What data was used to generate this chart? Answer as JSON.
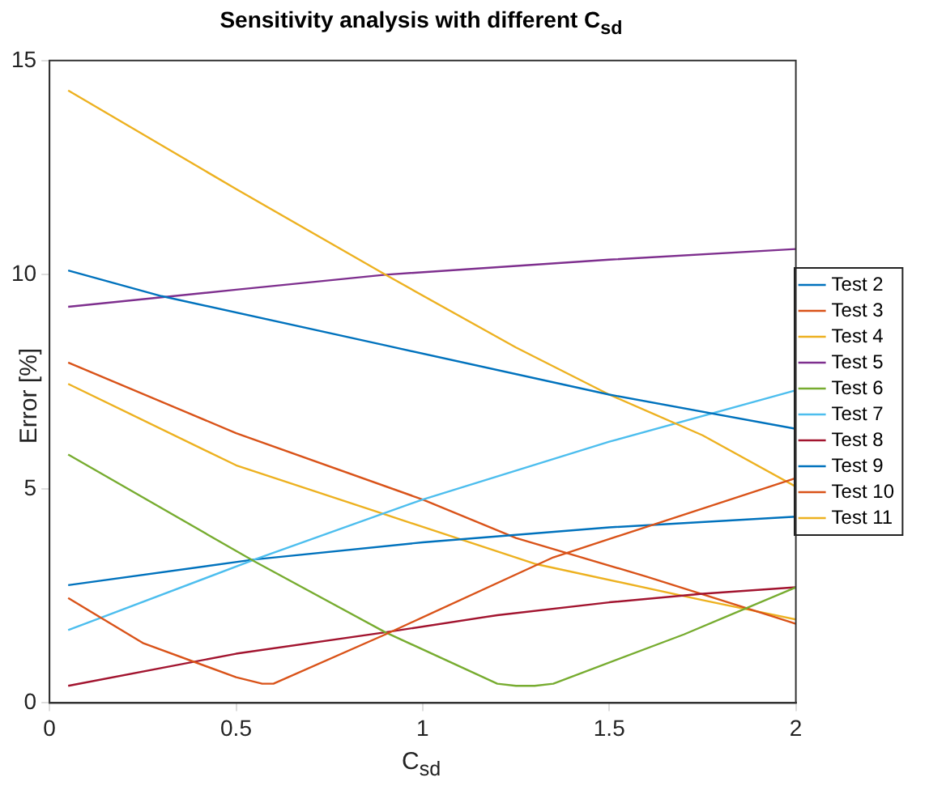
{
  "chart_data": {
    "type": "line",
    "title": "Sensitivity analysis with different C$_{sd}$",
    "xlabel": "C$_{sd}$",
    "ylabel": "Error [%]",
    "xlim": [
      0,
      2
    ],
    "xticks": [
      0,
      0.5,
      1,
      1.5,
      2
    ],
    "ylim": [
      0,
      15
    ],
    "yticks": [
      0,
      5,
      10,
      15
    ],
    "grid": false,
    "legend": "right",
    "marker": "none",
    "line_style": "solid",
    "series": [
      {
        "name": "Test 2",
        "color": "#0072bd",
        "x": [
          0.05,
          0.3,
          0.9,
          1.5,
          2
        ],
        "values": [
          10.1,
          9.5,
          8.35,
          7.2,
          6.4
        ]
      },
      {
        "name": "Test 3",
        "color": "#d95319",
        "x": [
          0.05,
          0.25,
          0.5,
          0.57,
          0.6,
          0.9,
          1.35,
          2
        ],
        "values": [
          2.45,
          1.4,
          0.6,
          0.45,
          0.45,
          1.6,
          3.4,
          5.25
        ]
      },
      {
        "name": "Test 4",
        "color": "#edb120",
        "x": [
          0.05,
          0.5,
          0.9,
          1.25,
          1.5,
          1.75,
          2
        ],
        "values": [
          14.3,
          12,
          10,
          8.3,
          7.2,
          6.25,
          5.05
        ]
      },
      {
        "name": "Test 5",
        "color": "#7e2f8e",
        "x": [
          0.05,
          0.5,
          0.9,
          1.5,
          2
        ],
        "values": [
          9.25,
          9.65,
          10,
          10.35,
          10.6
        ]
      },
      {
        "name": "Test 6",
        "color": "#77ac30",
        "x": [
          0.05,
          0.55,
          0.9,
          1.2,
          1.25,
          1.3,
          1.35,
          1.7,
          2
        ],
        "values": [
          5.8,
          3.3,
          1.65,
          0.45,
          0.4,
          0.4,
          0.45,
          1.6,
          2.7
        ]
      },
      {
        "name": "Test 7",
        "color": "#4dbeee",
        "x": [
          0.05,
          0.55,
          1,
          1.5,
          2
        ],
        "values": [
          1.7,
          3.35,
          4.75,
          6.1,
          7.3
        ]
      },
      {
        "name": "Test 8",
        "color": "#a2142f",
        "x": [
          0.05,
          0.5,
          0.9,
          1.2,
          1.5,
          1.75,
          2
        ],
        "values": [
          0.4,
          1.15,
          1.65,
          2.05,
          2.35,
          2.55,
          2.7
        ]
      },
      {
        "name": "Test 9",
        "color": "#0072bd",
        "x": [
          0.05,
          0.55,
          1,
          1.5,
          2
        ],
        "values": [
          2.75,
          3.35,
          3.75,
          4.1,
          4.35
        ]
      },
      {
        "name": "Test 10",
        "color": "#d95319",
        "x": [
          0.05,
          0.5,
          1,
          1.25,
          1.6,
          2
        ],
        "values": [
          7.95,
          6.3,
          4.75,
          3.85,
          2.95,
          1.85
        ]
      },
      {
        "name": "Test 11",
        "color": "#edb120",
        "x": [
          0.05,
          0.5,
          0.9,
          1.3,
          1.75,
          2
        ],
        "values": [
          7.45,
          5.55,
          4.4,
          3.25,
          2.4,
          1.95
        ]
      }
    ]
  }
}
